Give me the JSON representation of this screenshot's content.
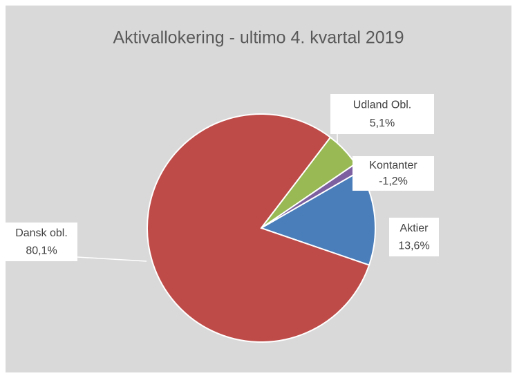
{
  "chart_data": {
    "type": "pie",
    "title": "Aktivallokering - ultimo 4. kvartal 2019",
    "categories": [
      "Aktier",
      "Dansk obl.",
      "Udland Obl.",
      "Kontanter"
    ],
    "values": [
      13.6,
      80.1,
      5.1,
      -1.2
    ],
    "value_labels": [
      "13,6%",
      "80,1%",
      "5,1%",
      "-1,2%"
    ],
    "colors": [
      "#4a7ebb",
      "#be4b48",
      "#98b954",
      "#7d60a0"
    ]
  }
}
